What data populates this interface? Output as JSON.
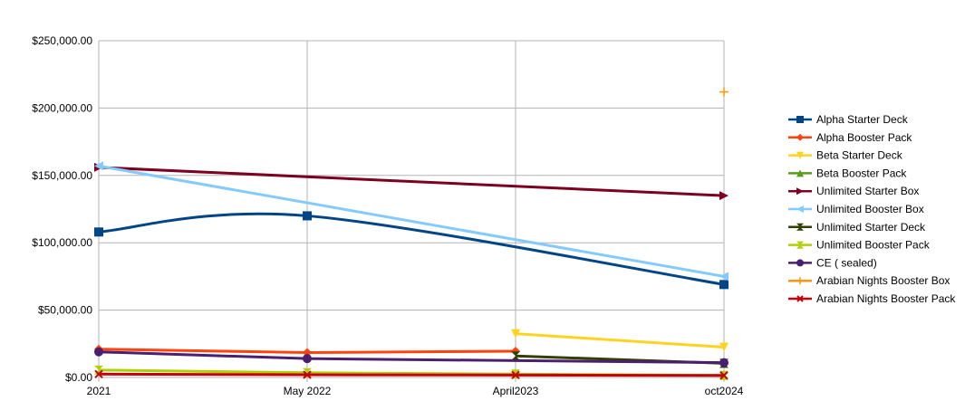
{
  "chart_data": {
    "type": "line",
    "title": "",
    "xlabel": "",
    "ylabel": "",
    "categories": [
      "2021",
      "May 2022",
      "April2023",
      "oct2024"
    ],
    "ylim": [
      0,
      250000
    ],
    "yticks": [
      "$0.00",
      "$50,000.00",
      "$100,000.00",
      "$150,000.00",
      "$200,000.00",
      "$250,000.00"
    ],
    "grid": "horizontal",
    "legend_position": "right",
    "series": [
      {
        "name": "Alpha Starter Deck",
        "color": "#004586",
        "marker": "square",
        "smooth": true,
        "values": [
          108000,
          120000,
          null,
          69000
        ]
      },
      {
        "name": "Alpha Booster Pack",
        "color": "#ff420e",
        "marker": "diamond",
        "values": [
          21000,
          18500,
          19500,
          null
        ]
      },
      {
        "name": "Beta Starter Deck",
        "color": "#ffd320",
        "marker": "triangle-down",
        "values": [
          null,
          null,
          32500,
          22500
        ]
      },
      {
        "name": "Beta Booster Pack",
        "color": "#579d1c",
        "marker": "triangle-up",
        "values": [
          null,
          null,
          null,
          null
        ]
      },
      {
        "name": "Unlimited Starter Box",
        "color": "#7e0021",
        "marker": "triangle-right",
        "values": [
          156000,
          null,
          null,
          135000
        ]
      },
      {
        "name": "Unlimited Booster Box",
        "color": "#83caff",
        "marker": "triangle-left",
        "values": [
          157000,
          null,
          null,
          75000
        ]
      },
      {
        "name": "Unlimited Starter Deck",
        "color": "#314004",
        "marker": "bowtie",
        "values": [
          null,
          null,
          16000,
          10500
        ]
      },
      {
        "name": "Unlimited Booster Pack",
        "color": "#aecf00",
        "marker": "hourglass",
        "values": [
          5500,
          3500,
          2500,
          1500
        ]
      },
      {
        "name": "CE ( sealed)",
        "color": "#4b1f6f",
        "marker": "circle",
        "values": [
          19000,
          14000,
          null,
          11000
        ]
      },
      {
        "name": "Arabian Nights Booster Box",
        "color": "#ff950e",
        "marker": "plus",
        "values": [
          null,
          null,
          null,
          212000
        ]
      },
      {
        "name": "Arabian Nights Booster Pack",
        "color": "#c5000b",
        "marker": "x",
        "values": [
          2500,
          2000,
          1800,
          1500
        ]
      }
    ]
  }
}
